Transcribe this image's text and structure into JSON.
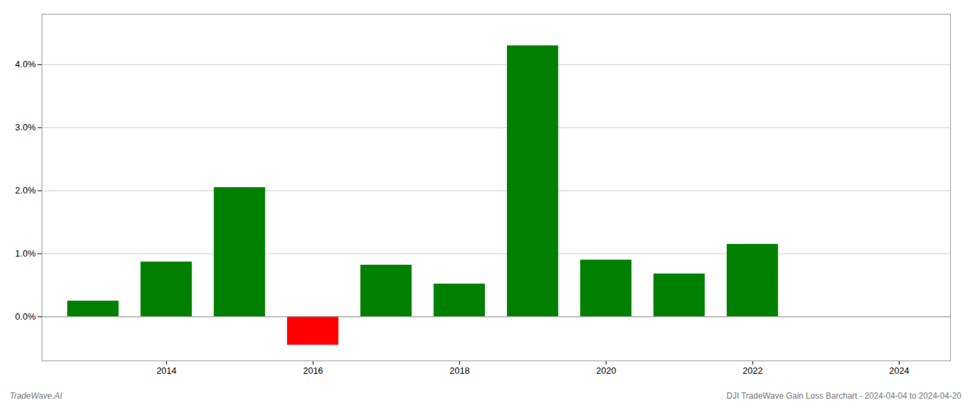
{
  "chart_data": {
    "type": "bar",
    "annotations": [
      "TradeWave.AI",
      "DJI TradeWave Gain Loss Barchart - 2024-04-04 to 2024-04-20"
    ],
    "x": [
      2013,
      2014,
      2015,
      2016,
      2017,
      2018,
      2019,
      2020,
      2021,
      2022,
      2023
    ],
    "values": [
      0.0025,
      0.0087,
      0.0205,
      -0.0045,
      0.0082,
      0.0052,
      0.043,
      0.009,
      0.0068,
      0.0115,
      0.0
    ],
    "colors": [
      "#008000",
      "#008000",
      "#008000",
      "#ff0000",
      "#008000",
      "#008000",
      "#008000",
      "#008000",
      "#008000",
      "#008000",
      "#008000"
    ],
    "xlim": [
      2012.3,
      2024.7
    ],
    "xticks": [
      2014,
      2016,
      2018,
      2020,
      2022,
      2024
    ],
    "ylim": [
      -0.007,
      0.048
    ],
    "yticks": [
      {
        "value": 0.0,
        "label": "0.0%"
      },
      {
        "value": 0.01,
        "label": "1.0%"
      },
      {
        "value": 0.02,
        "label": "2.0%"
      },
      {
        "value": 0.03,
        "label": "3.0%"
      },
      {
        "value": 0.04,
        "label": "4.0%"
      }
    ],
    "grid": true
  }
}
